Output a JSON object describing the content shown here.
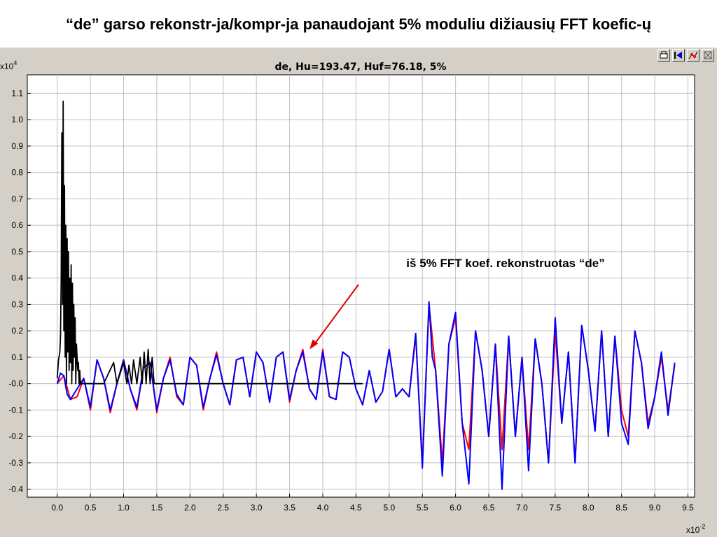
{
  "slide": {
    "title": "“de” garso rekonstr-ja/kompr-ja panaudojant 5% moduliu dižiausių FFT koefic-ų"
  },
  "toolbar": {
    "icons": [
      "print-icon",
      "back-icon",
      "marker-icon",
      "zoom-icon"
    ]
  },
  "colors": {
    "original": "#000000",
    "reconstructed_red": "#ff0000",
    "reconstructed_blue": "#0000ff",
    "arrow": "#e00000",
    "grid": "#c0c0c0"
  },
  "chart_data": {
    "type": "line",
    "title": "de, Hu=193.47, Huf=76.18, 5%",
    "x_multiplier": "x10",
    "x_multiplier_exp": "-2",
    "y_multiplier": "x10",
    "y_multiplier_exp": "4",
    "xlim": [
      -0.45,
      9.6
    ],
    "ylim": [
      -0.43,
      1.17
    ],
    "x_ticks": [
      "0.0",
      "0.5",
      "1.0",
      "1.5",
      "2.0",
      "2.5",
      "3.0",
      "3.5",
      "4.0",
      "4.5",
      "5.0",
      "5.5",
      "6.0",
      "6.5",
      "7.0",
      "7.5",
      "8.0",
      "8.5",
      "9.0",
      "9.5"
    ],
    "y_ticks": [
      "1.1",
      "1.0",
      "0.9",
      "0.8",
      "0.7",
      "0.6",
      "0.5",
      "0.4",
      "0.3",
      "0.2",
      "0.1",
      "-0.0",
      "-0.1",
      "-0.2",
      "-0.3",
      "-0.4"
    ],
    "grid": true,
    "annotation": {
      "text": "iš 5% FFT koef. rekonstruotas “de”",
      "x": 3.8,
      "y": 0.13
    },
    "series": [
      {
        "color": "#000000",
        "x": [
          0.0,
          0.02,
          0.04,
          0.05,
          0.06,
          0.07,
          0.08,
          0.09,
          0.1,
          0.11,
          0.12,
          0.13,
          0.14,
          0.15,
          0.16,
          0.17,
          0.18,
          0.19,
          0.2,
          0.21,
          0.22,
          0.23,
          0.24,
          0.25,
          0.26,
          0.27,
          0.28,
          0.29,
          0.3,
          0.31,
          0.32,
          0.33,
          0.34,
          0.35,
          0.4,
          0.5,
          0.7,
          0.85,
          0.9,
          1.0,
          1.05,
          1.08,
          1.12,
          1.15,
          1.2,
          1.25,
          1.28,
          1.31,
          1.34,
          1.37,
          1.4,
          1.43,
          1.46,
          1.5,
          2.0,
          3.0,
          4.0,
          4.6
        ],
        "y": [
          0.02,
          0.09,
          0.12,
          0.18,
          0.4,
          0.95,
          0.3,
          1.07,
          0.2,
          0.75,
          0.1,
          0.6,
          0.0,
          0.55,
          0.12,
          0.5,
          0.05,
          0.4,
          0.08,
          0.45,
          0.0,
          0.38,
          0.05,
          0.3,
          0.1,
          0.25,
          0.0,
          0.15,
          0.1,
          0.05,
          0.08,
          0.0,
          0.05,
          0.0,
          0.0,
          0.0,
          0.0,
          0.08,
          0.0,
          0.08,
          0.0,
          0.07,
          0.0,
          0.09,
          0.0,
          0.1,
          0.0,
          0.12,
          0.0,
          0.13,
          0.0,
          0.1,
          0.0,
          0.0,
          0.0,
          0.0,
          0.0,
          0.0
        ]
      },
      {
        "color": "#ff0000",
        "x": [
          0.0,
          0.1,
          0.2,
          0.3,
          0.4,
          0.5,
          0.6,
          0.7,
          0.8,
          0.9,
          1.0,
          1.1,
          1.2,
          1.3,
          1.4,
          1.5,
          1.6,
          1.7,
          1.8,
          1.9,
          2.0,
          2.1,
          2.2,
          2.3,
          2.4,
          2.5,
          2.6,
          2.7,
          2.8,
          2.9,
          3.0,
          3.1,
          3.2,
          3.3,
          3.4,
          3.5,
          3.6,
          3.7,
          3.8,
          3.9,
          4.0,
          4.1,
          4.2,
          4.3,
          4.4,
          4.5,
          4.6,
          4.7,
          4.8,
          4.9,
          5.0,
          5.1,
          5.2,
          5.3,
          5.4,
          5.5,
          5.6,
          5.7,
          5.8,
          5.9,
          6.0,
          6.1,
          6.2,
          6.3,
          6.4,
          6.5,
          6.6,
          6.7,
          6.8,
          6.9,
          7.0,
          7.1,
          7.2,
          7.3,
          7.4,
          7.5,
          7.6,
          7.7,
          7.8,
          7.9,
          8.0,
          8.1,
          8.2,
          8.3,
          8.4,
          8.5,
          8.6,
          8.7,
          8.8,
          8.9,
          9.0,
          9.1,
          9.2,
          9.3
        ],
        "y": [
          0.0,
          0.03,
          -0.06,
          -0.05,
          0.02,
          -0.1,
          0.09,
          0.02,
          -0.11,
          0.0,
          0.09,
          -0.02,
          -0.1,
          0.06,
          0.08,
          -0.11,
          0.02,
          0.1,
          -0.05,
          -0.08,
          0.1,
          0.07,
          -0.1,
          0.02,
          0.12,
          0.0,
          -0.08,
          0.09,
          0.1,
          -0.05,
          0.12,
          0.08,
          -0.07,
          0.1,
          0.12,
          -0.07,
          0.05,
          0.13,
          -0.02,
          -0.06,
          0.13,
          -0.05,
          -0.06,
          0.12,
          0.1,
          -0.02,
          -0.08,
          0.05,
          -0.07,
          -0.03,
          0.13,
          -0.05,
          -0.02,
          -0.05,
          0.18,
          -0.3,
          0.3,
          0.05,
          -0.3,
          0.15,
          0.25,
          -0.15,
          -0.25,
          0.2,
          0.05,
          -0.2,
          0.15,
          -0.25,
          0.18,
          -0.2,
          0.1,
          -0.25,
          0.17,
          0.0,
          -0.3,
          0.2,
          -0.15,
          0.12,
          -0.3,
          0.22,
          0.05,
          -0.18,
          0.2,
          -0.2,
          0.18,
          -0.1,
          -0.2,
          0.2,
          0.08,
          -0.15,
          -0.05,
          0.1,
          -0.1,
          0.07
        ]
      },
      {
        "color": "#0000ff",
        "x": [
          0.0,
          0.05,
          0.1,
          0.15,
          0.2,
          0.3,
          0.4,
          0.5,
          0.6,
          0.7,
          0.8,
          0.9,
          1.0,
          1.1,
          1.2,
          1.3,
          1.4,
          1.5,
          1.6,
          1.7,
          1.8,
          1.9,
          2.0,
          2.1,
          2.2,
          2.3,
          2.4,
          2.5,
          2.6,
          2.7,
          2.8,
          2.9,
          3.0,
          3.1,
          3.2,
          3.3,
          3.4,
          3.5,
          3.6,
          3.7,
          3.8,
          3.9,
          4.0,
          4.1,
          4.2,
          4.3,
          4.4,
          4.5,
          4.6,
          4.7,
          4.8,
          4.9,
          5.0,
          5.1,
          5.2,
          5.3,
          5.4,
          5.5,
          5.6,
          5.65,
          5.7,
          5.8,
          5.9,
          6.0,
          6.1,
          6.2,
          6.3,
          6.4,
          6.5,
          6.6,
          6.7,
          6.8,
          6.9,
          7.0,
          7.1,
          7.2,
          7.3,
          7.4,
          7.5,
          7.6,
          7.7,
          7.8,
          7.9,
          8.0,
          8.1,
          8.2,
          8.3,
          8.4,
          8.5,
          8.6,
          8.7,
          8.8,
          8.9,
          9.0,
          9.1,
          9.2,
          9.3
        ],
        "y": [
          0.0,
          0.04,
          0.03,
          -0.04,
          -0.06,
          -0.02,
          0.02,
          -0.09,
          0.09,
          0.02,
          -0.1,
          0.0,
          0.09,
          -0.02,
          -0.09,
          0.06,
          0.08,
          -0.1,
          0.02,
          0.09,
          -0.04,
          -0.08,
          0.1,
          0.07,
          -0.09,
          0.02,
          0.11,
          0.0,
          -0.08,
          0.09,
          0.1,
          -0.05,
          0.12,
          0.08,
          -0.07,
          0.1,
          0.12,
          -0.06,
          0.05,
          0.12,
          -0.02,
          -0.06,
          0.12,
          -0.05,
          -0.06,
          0.12,
          0.1,
          -0.02,
          -0.08,
          0.05,
          -0.07,
          -0.03,
          0.13,
          -0.05,
          -0.02,
          -0.05,
          0.19,
          -0.32,
          0.31,
          0.1,
          0.05,
          -0.35,
          0.15,
          0.27,
          -0.15,
          -0.38,
          0.2,
          0.05,
          -0.2,
          0.15,
          -0.4,
          0.18,
          -0.2,
          0.1,
          -0.33,
          0.17,
          0.0,
          -0.3,
          0.25,
          -0.15,
          0.12,
          -0.3,
          0.22,
          0.05,
          -0.18,
          0.2,
          -0.2,
          0.18,
          -0.15,
          -0.23,
          0.2,
          0.08,
          -0.17,
          -0.05,
          0.12,
          -0.12,
          0.08
        ]
      }
    ]
  }
}
